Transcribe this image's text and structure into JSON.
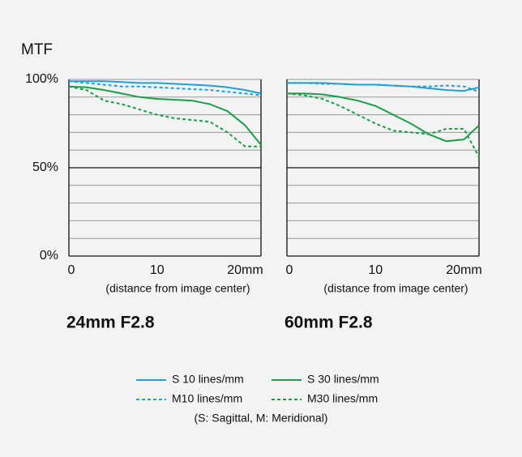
{
  "ylabel": "MTF",
  "note": "(S: Sagittal, M: Meridional)",
  "chart_data": [
    {
      "type": "line",
      "title": "24mm F2.8",
      "xlabel": "(distance from image center)",
      "x": [
        0,
        2,
        4,
        6,
        8,
        10,
        12,
        14,
        16,
        18,
        20,
        21.8
      ],
      "xlim": [
        0,
        21.8
      ],
      "xticks": [
        0,
        10,
        {
          "value": 20,
          "label": "20mm"
        }
      ],
      "ylim": [
        0,
        100
      ],
      "yticks": [
        {
          "value": 0,
          "label": "0%"
        },
        {
          "value": 50,
          "label": "50%"
        },
        {
          "value": 100,
          "label": "100%"
        }
      ],
      "minor_yticks": [
        10,
        20,
        30,
        40,
        60,
        70,
        80,
        90
      ],
      "show_ytick_labels": true,
      "series": [
        {
          "name": "S 10 lines/mm",
          "color": "#1ea0d8",
          "dashed": false,
          "values": [
            99,
            99,
            99,
            98.5,
            98,
            98,
            97.5,
            97,
            96.5,
            95.5,
            94,
            92
          ]
        },
        {
          "name": "S 30 lines/mm",
          "color": "#1a9e4a",
          "dashed": false,
          "values": [
            96,
            95.5,
            94,
            92,
            90,
            89,
            88.5,
            88,
            86,
            82,
            74,
            63
          ]
        },
        {
          "name": "M10 lines/mm",
          "color": "#1ea0d8",
          "dashed": true,
          "values": [
            99,
            98,
            97,
            96,
            96,
            95.5,
            95,
            94.5,
            94,
            93,
            92,
            91
          ]
        },
        {
          "name": "M30 lines/mm",
          "color": "#1a9e4a",
          "dashed": true,
          "values": [
            96,
            94,
            88,
            86,
            83,
            80,
            78,
            77,
            76,
            70,
            62,
            62
          ]
        }
      ]
    },
    {
      "type": "line",
      "title": "60mm F2.8",
      "xlabel": "(distance from image center)",
      "x": [
        0,
        2,
        4,
        6,
        8,
        10,
        12,
        14,
        16,
        18,
        20,
        21.7
      ],
      "xlim": [
        0,
        21.7
      ],
      "xticks": [
        0,
        10,
        {
          "value": 20,
          "label": "20mm"
        }
      ],
      "ylim": [
        0,
        100
      ],
      "yticks": [
        0,
        50,
        100
      ],
      "minor_yticks": [
        10,
        20,
        30,
        40,
        60,
        70,
        80,
        90
      ],
      "show_ytick_labels": false,
      "series": [
        {
          "name": "S 10 lines/mm",
          "color": "#1ea0d8",
          "dashed": false,
          "values": [
            98,
            98,
            98,
            97.5,
            97,
            97,
            96.5,
            96,
            95,
            94,
            93.5,
            95.5
          ]
        },
        {
          "name": "S 30 lines/mm",
          "color": "#1a9e4a",
          "dashed": false,
          "values": [
            92,
            92,
            91.5,
            90,
            88,
            85,
            80,
            75,
            69,
            65,
            66,
            74
          ]
        },
        {
          "name": "M10 lines/mm",
          "color": "#1ea0d8",
          "dashed": true,
          "values": [
            98,
            98,
            97.5,
            97.5,
            97,
            97,
            96.5,
            96,
            96,
            96.5,
            96,
            93
          ]
        },
        {
          "name": "M30 lines/mm",
          "color": "#1a9e4a",
          "dashed": true,
          "values": [
            92,
            91,
            89,
            85,
            80,
            75,
            71,
            70,
            69,
            72,
            72,
            56
          ]
        }
      ]
    }
  ]
}
